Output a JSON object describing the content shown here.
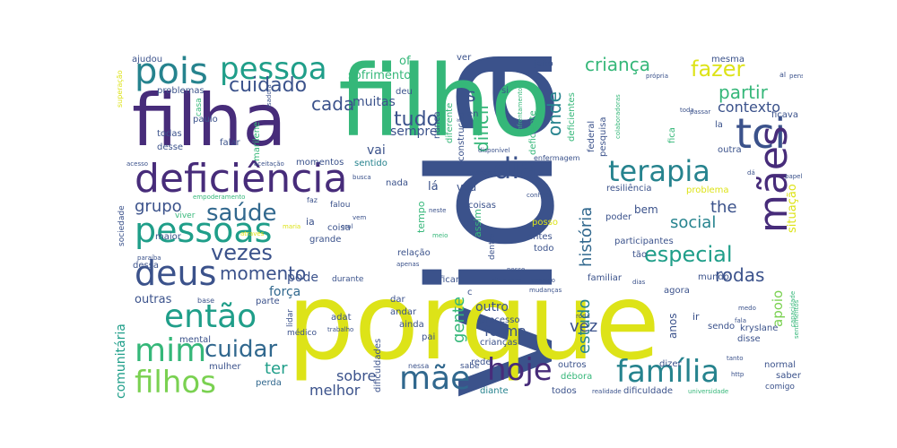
{
  "palette": {
    "purple": "#472c7a",
    "indigo": "#3b528b",
    "blue": "#31688e",
    "teal": "#26838e",
    "cyan": "#1f9e89",
    "green": "#35b779",
    "lime": "#7ad151",
    "yellow": "#dde318",
    "lightyellow": "#bddf26"
  },
  "words": [
    {
      "text": "vida",
      "color": "indigo"
    },
    {
      "text": "filho",
      "color": "green"
    },
    {
      "text": "porque",
      "color": "yellow"
    },
    {
      "text": "filha",
      "color": "purple"
    },
    {
      "text": "deficiência",
      "color": "purple"
    },
    {
      "text": "pois",
      "color": "teal"
    },
    {
      "text": "pessoa",
      "color": "cyan"
    },
    {
      "text": "tci",
      "color": "indigo"
    },
    {
      "text": "mães",
      "color": "purple"
    },
    {
      "text": "terapia",
      "color": "teal"
    },
    {
      "text": "dia",
      "color": "indigo"
    },
    {
      "text": "pessoas",
      "color": "cyan"
    },
    {
      "text": "deus",
      "color": "indigo"
    },
    {
      "text": "então",
      "color": "cyan"
    },
    {
      "text": "mim",
      "color": "green"
    },
    {
      "text": "filhos",
      "color": "lime"
    },
    {
      "text": "mãe",
      "color": "blue"
    },
    {
      "text": "hoje",
      "color": "purple"
    },
    {
      "text": "família",
      "color": "teal"
    },
    {
      "text": "saúde",
      "color": "blue"
    },
    {
      "text": "cuidar",
      "color": "blue"
    },
    {
      "text": "vezes",
      "color": "indigo"
    },
    {
      "text": "cuidado",
      "color": "indigo"
    },
    {
      "text": "momento",
      "color": "indigo"
    },
    {
      "text": "especial",
      "color": "cyan"
    },
    {
      "text": "criança",
      "color": "green"
    },
    {
      "text": "fazer",
      "color": "yellow"
    },
    {
      "text": "difícil",
      "color": "green"
    },
    {
      "text": "tudo",
      "color": "indigo"
    },
    {
      "text": "cada",
      "color": "indigo"
    },
    {
      "text": "partir",
      "color": "green"
    },
    {
      "text": "contexto",
      "color": "indigo"
    },
    {
      "text": "rodas",
      "color": "indigo"
    },
    {
      "text": "social",
      "color": "teal"
    },
    {
      "text": "the",
      "color": "indigo"
    },
    {
      "text": "grupo",
      "color": "indigo"
    },
    {
      "text": "onde",
      "color": "teal"
    },
    {
      "text": "história",
      "color": "blue"
    },
    {
      "text": "estudo",
      "color": "teal"
    },
    {
      "text": "gente",
      "color": "green"
    },
    {
      "text": "vez",
      "color": "indigo"
    },
    {
      "text": "forma",
      "color": "indigo"
    },
    {
      "text": "sobre",
      "color": "indigo"
    },
    {
      "text": "melhor",
      "color": "indigo"
    },
    {
      "text": "ter",
      "color": "cyan"
    },
    {
      "text": "pode",
      "color": "indigo"
    },
    {
      "text": "força",
      "color": "blue"
    },
    {
      "text": "outras",
      "color": "indigo"
    },
    {
      "text": "muitas",
      "color": "indigo"
    },
    {
      "text": "sempre",
      "color": "indigo"
    },
    {
      "text": "sofrimento",
      "color": "green"
    },
    {
      "text": "of",
      "color": "green"
    },
    {
      "text": "vai",
      "color": "indigo"
    },
    {
      "text": "apoio",
      "color": "lime"
    },
    {
      "text": "situação",
      "color": "yellow"
    },
    {
      "text": "comunitária",
      "color": "cyan"
    },
    {
      "text": "problemas",
      "color": "indigo"
    },
    {
      "text": "ajudou",
      "color": "indigo"
    },
    {
      "text": "paulo",
      "color": "indigo"
    },
    {
      "text": "todas",
      "color": "indigo"
    },
    {
      "text": "desse",
      "color": "indigo"
    },
    {
      "text": "falar",
      "color": "indigo"
    },
    {
      "text": "marilene",
      "color": "green"
    },
    {
      "text": "momentos",
      "color": "indigo"
    },
    {
      "text": "sentido",
      "color": "teal"
    },
    {
      "text": "nada",
      "color": "indigo"
    },
    {
      "text": "lá",
      "color": "indigo"
    },
    {
      "text": "vou",
      "color": "indigo"
    },
    {
      "text": "tempo",
      "color": "green"
    },
    {
      "text": "assim",
      "color": "green"
    },
    {
      "text": "coisas",
      "color": "indigo"
    },
    {
      "text": "coisa",
      "color": "indigo"
    },
    {
      "text": "grande",
      "color": "indigo"
    },
    {
      "text": "ia",
      "color": "indigo"
    },
    {
      "text": "maior",
      "color": "indigo"
    },
    {
      "text": "dessa",
      "color": "indigo"
    },
    {
      "text": "parte",
      "color": "indigo"
    },
    {
      "text": "mental",
      "color": "indigo"
    },
    {
      "text": "mulher",
      "color": "indigo"
    },
    {
      "text": "perda",
      "color": "blue"
    },
    {
      "text": "lidar",
      "color": "indigo"
    },
    {
      "text": "médico",
      "color": "indigo"
    },
    {
      "text": "adat",
      "color": "indigo"
    },
    {
      "text": "andar",
      "color": "indigo"
    },
    {
      "text": "ainda",
      "color": "indigo"
    },
    {
      "text": "pai",
      "color": "indigo"
    },
    {
      "text": "outro",
      "color": "indigo"
    },
    {
      "text": "processo",
      "color": "indigo"
    },
    {
      "text": "crianças",
      "color": "indigo"
    },
    {
      "text": "rede",
      "color": "indigo"
    },
    {
      "text": "outros",
      "color": "indigo"
    },
    {
      "text": "débora",
      "color": "green"
    },
    {
      "text": "diante",
      "color": "teal"
    },
    {
      "text": "todos",
      "color": "indigo"
    },
    {
      "text": "anos",
      "color": "indigo"
    },
    {
      "text": "agora",
      "color": "indigo"
    },
    {
      "text": "mundo",
      "color": "indigo"
    },
    {
      "text": "dizer",
      "color": "indigo"
    },
    {
      "text": "normal",
      "color": "indigo"
    },
    {
      "text": "saber",
      "color": "indigo"
    },
    {
      "text": "comigo",
      "color": "indigo"
    },
    {
      "text": "disse",
      "color": "indigo"
    },
    {
      "text": "kryslane",
      "color": "indigo"
    },
    {
      "text": "sendo",
      "color": "indigo"
    },
    {
      "text": "ir",
      "color": "indigo"
    },
    {
      "text": "participantes",
      "color": "indigo"
    },
    {
      "text": "poder",
      "color": "indigo"
    },
    {
      "text": "bem",
      "color": "indigo"
    },
    {
      "text": "resiliência",
      "color": "indigo"
    },
    {
      "text": "problema",
      "color": "yellow"
    },
    {
      "text": "outra",
      "color": "indigo"
    },
    {
      "text": "federal",
      "color": "indigo"
    },
    {
      "text": "pesquisa",
      "color": "indigo"
    },
    {
      "text": "deficiente",
      "color": "green"
    },
    {
      "text": "deficientes",
      "color": "green"
    },
    {
      "text": "jeito",
      "color": "indigo"
    },
    {
      "text": "nunca",
      "color": "indigo"
    },
    {
      "text": "diferente",
      "color": "green"
    },
    {
      "text": "construção",
      "color": "indigo"
    },
    {
      "text": "deu",
      "color": "indigo"
    },
    {
      "text": "en",
      "color": "indigo"
    },
    {
      "text": "ficava",
      "color": "indigo"
    },
    {
      "text": "mesma",
      "color": "indigo"
    },
    {
      "text": "fica",
      "color": "green"
    },
    {
      "text": "la",
      "color": "indigo"
    },
    {
      "text": "ficar",
      "color": "indigo"
    },
    {
      "text": "dar",
      "color": "indigo"
    },
    {
      "text": "relação",
      "color": "indigo"
    },
    {
      "text": "antes",
      "color": "indigo"
    },
    {
      "text": "todo",
      "color": "indigo"
    },
    {
      "text": "posso",
      "color": "yellow"
    },
    {
      "text": "tão",
      "color": "indigo"
    },
    {
      "text": "familiar",
      "color": "indigo"
    },
    {
      "text": "dificuldade",
      "color": "indigo"
    },
    {
      "text": "dificuldades",
      "color": "indigo"
    },
    {
      "text": "sabe",
      "color": "indigo"
    },
    {
      "text": "nessa",
      "color": "indigo"
    },
    {
      "text": "durante",
      "color": "indigo"
    },
    {
      "text": "sociedade",
      "color": "indigo"
    },
    {
      "text": "viver",
      "color": "green"
    },
    {
      "text": "superação",
      "color": "yellow"
    },
    {
      "text": "acesso",
      "color": "indigo"
    },
    {
      "text": "aceitação",
      "color": "indigo"
    },
    {
      "text": "falou",
      "color": "indigo"
    },
    {
      "text": "empoderamento",
      "color": "green"
    },
    {
      "text": "enfermagem",
      "color": "indigo"
    },
    {
      "text": "disponível",
      "color": "indigo"
    },
    {
      "text": "busca",
      "color": "indigo"
    },
    {
      "text": "mulheres",
      "color": "indigo"
    },
    {
      "text": "oral",
      "color": "indigo"
    },
    {
      "text": "dentro",
      "color": "indigo"
    },
    {
      "text": "trabalho",
      "color": "indigo"
    },
    {
      "text": "base",
      "color": "indigo"
    },
    {
      "text": "paraíba",
      "color": "indigo"
    },
    {
      "text": "apenas",
      "color": "indigo"
    },
    {
      "text": "situações",
      "color": "indigo"
    },
    {
      "text": "consigo",
      "color": "indigo"
    },
    {
      "text": "dias",
      "color": "indigo"
    },
    {
      "text": "mudanças",
      "color": "indigo"
    },
    {
      "text": "roda",
      "color": "indigo"
    },
    {
      "text": "universidade",
      "color": "green"
    },
    {
      "text": "realidade",
      "color": "indigo"
    },
    {
      "text": "isadora",
      "color": "indigo"
    },
    {
      "text": "casa",
      "color": "green"
    },
    {
      "text": "própria",
      "color": "indigo"
    },
    {
      "text": "toda",
      "color": "indigo"
    },
    {
      "text": "passar",
      "color": "indigo"
    },
    {
      "text": "pensar",
      "color": "indigo"
    },
    {
      "text": "papel",
      "color": "indigo"
    },
    {
      "text": "conheci",
      "color": "indigo"
    },
    {
      "text": "neste",
      "color": "indigo"
    },
    {
      "text": "nesse",
      "color": "indigo"
    },
    {
      "text": "tanto",
      "color": "indigo"
    },
    {
      "text": "http",
      "color": "indigo"
    },
    {
      "text": "colaboradoras",
      "color": "green"
    },
    {
      "text": "enfrentamento",
      "color": "green"
    },
    {
      "text": "através",
      "color": "yellow"
    },
    {
      "text": "maria",
      "color": "yellow"
    },
    {
      "text": "meio",
      "color": "green"
    },
    {
      "text": "c",
      "color": "indigo"
    },
    {
      "text": "p",
      "color": "indigo"
    },
    {
      "text": "s",
      "color": "indigo"
    },
    {
      "text": "si",
      "color": "indigo"
    },
    {
      "text": "al",
      "color": "indigo"
    },
    {
      "text": "faz",
      "color": "indigo"
    },
    {
      "text": "vem",
      "color": "indigo"
    },
    {
      "text": "in",
      "color": "indigo"
    },
    {
      "text": "dá",
      "color": "indigo"
    },
    {
      "text": "ver",
      "color": "indigo"
    },
    {
      "text": "fala",
      "color": "indigo"
    },
    {
      "text": "medo",
      "color": "indigo"
    },
    {
      "text": "capacidade",
      "color": "green"
    },
    {
      "text": "sentimentos",
      "color": "green"
    }
  ]
}
